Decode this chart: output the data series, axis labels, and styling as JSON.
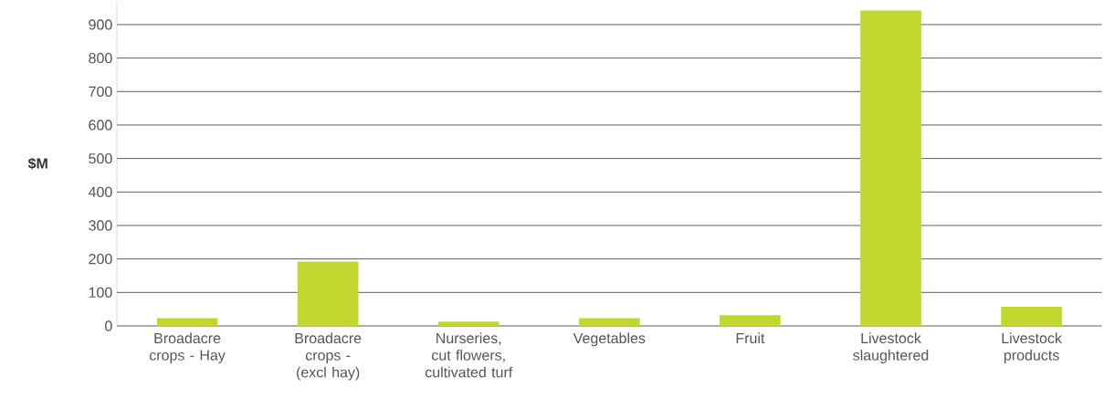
{
  "chart_data": {
    "type": "bar",
    "ylabel": "$M",
    "categories": [
      "Broadacre crops - Hay",
      "Broadacre crops - (excl hay)",
      "Nurseries, cut flowers, cultivated turf",
      "Vegetables",
      "Fruit",
      "Livestock slaughtered",
      "Livestock products"
    ],
    "values": [
      23,
      192,
      13,
      23,
      32,
      942,
      57
    ],
    "color": "#c2d72e",
    "ylim": [
      0,
      970
    ],
    "yticks": [
      0,
      100,
      200,
      300,
      400,
      500,
      600,
      700,
      800,
      900
    ],
    "grid": "y"
  }
}
